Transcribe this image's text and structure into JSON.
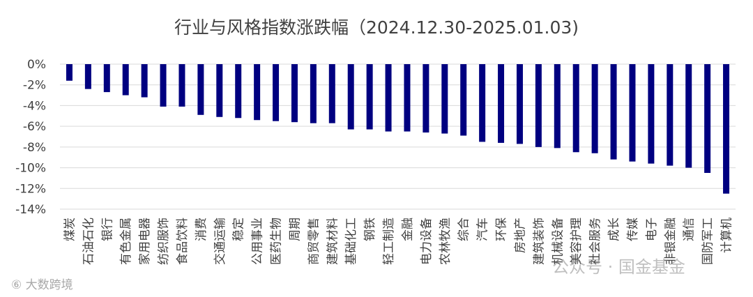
{
  "chart_data": {
    "type": "bar",
    "title": "行业与风格指数涨跌幅（2024.12.30-2025.01.03)",
    "xlabel": "",
    "ylabel": "",
    "ylim": [
      -14,
      0
    ],
    "ytick_values": [
      0,
      -2,
      -4,
      -6,
      -8,
      -10,
      -12,
      -14
    ],
    "ytick_labels": [
      "0%",
      "-2%",
      "-4%",
      "-6%",
      "-8%",
      "-10%",
      "-12%",
      "-14%"
    ],
    "grid": true,
    "legend": "none",
    "bar_color": "#000080",
    "categories": [
      "煤炭",
      "石油石化",
      "银行",
      "有色金属",
      "家用电器",
      "纺织服饰",
      "食品饮料",
      "消费",
      "交通运输",
      "稳定",
      "公用事业",
      "医药生物",
      "周期",
      "商贸零售",
      "建筑材料",
      "基础化工",
      "钢铁",
      "轻工制造",
      "金融",
      "电力设备",
      "农林牧渔",
      "综合",
      "汽车",
      "环保",
      "房地产",
      "建筑装饰",
      "机械设备",
      "美容护理",
      "社会服务",
      "成长",
      "传媒",
      "电子",
      "非银金融",
      "通信",
      "国防军工",
      "计算机"
    ],
    "values": [
      -1.6,
      -2.4,
      -2.7,
      -3.0,
      -3.2,
      -4.1,
      -4.1,
      -4.9,
      -5.1,
      -5.2,
      -5.4,
      -5.5,
      -5.6,
      -5.7,
      -5.7,
      -6.3,
      -6.3,
      -6.5,
      -6.5,
      -6.6,
      -6.7,
      -6.9,
      -7.5,
      -7.6,
      -7.7,
      -8.0,
      -8.1,
      -8.5,
      -8.6,
      -9.2,
      -9.4,
      -9.6,
      -9.8,
      -10.0,
      -10.5,
      -12.5
    ]
  },
  "watermarks": {
    "left": "⑥ 大数跨境",
    "right": "公众号 · 国金基金"
  }
}
